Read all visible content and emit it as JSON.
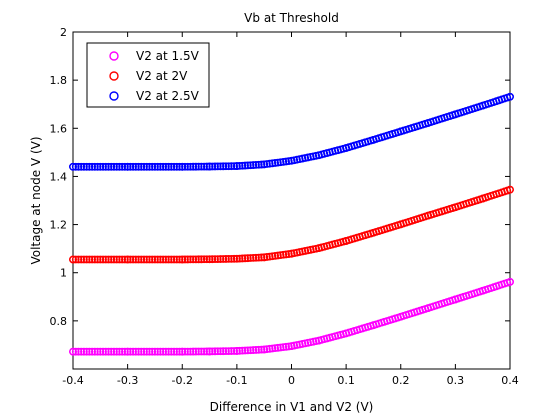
{
  "chart_data": {
    "type": "scatter",
    "title": "Vb at Threshold",
    "xlabel": "Difference in V1 and V2 (V)",
    "ylabel": "Voltage at node V (V)",
    "xlim": [
      -0.4,
      0.4
    ],
    "ylim": [
      0.6,
      2.0
    ],
    "xticks": [
      "-0.4",
      "-0.3",
      "-0.2",
      "-0.1",
      "0",
      "0.1",
      "0.2",
      "0.3",
      "0.4"
    ],
    "yticks": [
      "0.8",
      "1",
      "1.2",
      "1.4",
      "1.6",
      "1.8",
      "2"
    ],
    "grid": false,
    "legend_position": "top-left",
    "marker": "circle",
    "series": [
      {
        "name": "V2 at 1.5V",
        "color": "#ff00ff",
        "x": [
          -0.4,
          -0.3,
          -0.2,
          -0.15,
          -0.1,
          -0.05,
          0,
          0.05,
          0.1,
          0.15,
          0.2,
          0.25,
          0.3,
          0.35,
          0.4
        ],
        "y": [
          0.672,
          0.672,
          0.672,
          0.673,
          0.675,
          0.681,
          0.695,
          0.718,
          0.748,
          0.782,
          0.817,
          0.853,
          0.889,
          0.925,
          0.962
        ]
      },
      {
        "name": "V2 at 2V",
        "color": "#ff0000",
        "x": [
          -0.4,
          -0.3,
          -0.2,
          -0.15,
          -0.1,
          -0.05,
          0,
          0.05,
          0.1,
          0.15,
          0.2,
          0.25,
          0.3,
          0.35,
          0.4
        ],
        "y": [
          1.055,
          1.055,
          1.055,
          1.056,
          1.058,
          1.064,
          1.079,
          1.102,
          1.132,
          1.166,
          1.201,
          1.237,
          1.272,
          1.308,
          1.345
        ]
      },
      {
        "name": "V2 at 2.5V",
        "color": "#0000ff",
        "x": [
          -0.4,
          -0.3,
          -0.2,
          -0.15,
          -0.1,
          -0.05,
          0,
          0.05,
          0.1,
          0.15,
          0.2,
          0.25,
          0.3,
          0.35,
          0.4
        ],
        "y": [
          1.44,
          1.44,
          1.44,
          1.441,
          1.443,
          1.45,
          1.465,
          1.488,
          1.518,
          1.552,
          1.587,
          1.622,
          1.658,
          1.694,
          1.731
        ]
      }
    ]
  }
}
